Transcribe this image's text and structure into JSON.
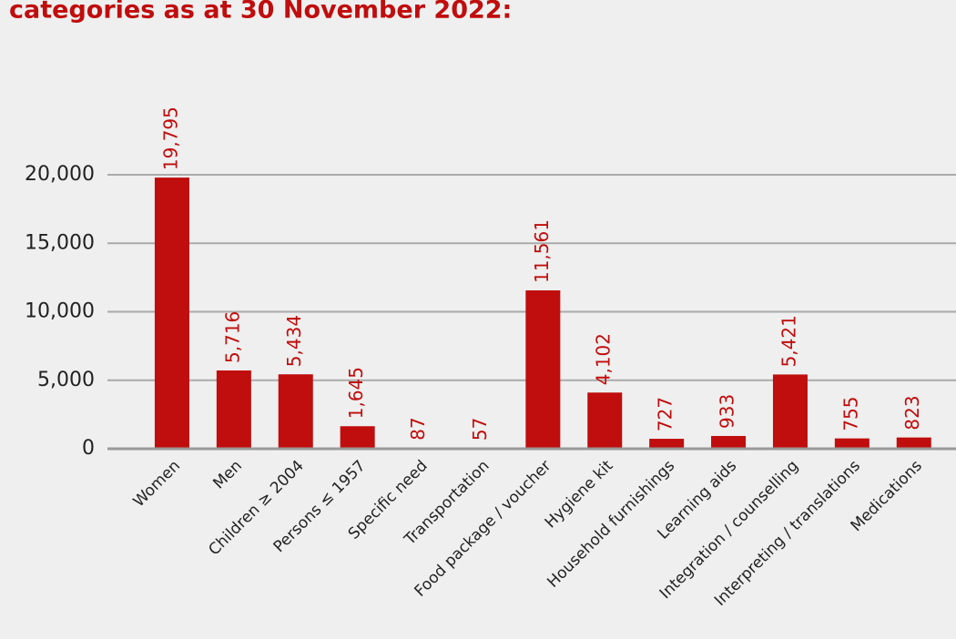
{
  "chart_data": {
    "type": "bar",
    "title": "categories as at 30 November 2022:",
    "categories": [
      "Women",
      "Men",
      "Children ≥ 2004",
      "Persons ≤ 1957",
      "Specific need",
      "Transportation",
      "Food package / voucher",
      "Hygiene kit",
      "Household furnishings",
      "Learning aids",
      "Integration / counselling",
      "Interpreting / translations",
      "Medications"
    ],
    "values": [
      19795,
      5716,
      5434,
      1645,
      87,
      57,
      11561,
      4102,
      727,
      933,
      5421,
      755,
      823
    ],
    "value_labels": [
      "19,795",
      "5,716",
      "5,434",
      "1,645",
      "87",
      "57",
      "11,561",
      "4,102",
      "727",
      "933",
      "5,421",
      "755",
      "823"
    ],
    "color": "#c00d0d",
    "ylim": [
      0,
      20000
    ],
    "yticks": [
      0,
      {
        "value": 5000,
        "label": "5,000"
      },
      {
        "value": 10000,
        "label": "10,000"
      },
      {
        "value": 15000,
        "label": "15,000"
      },
      {
        "value": 20000,
        "label": "20,000"
      }
    ],
    "grid": true
  }
}
